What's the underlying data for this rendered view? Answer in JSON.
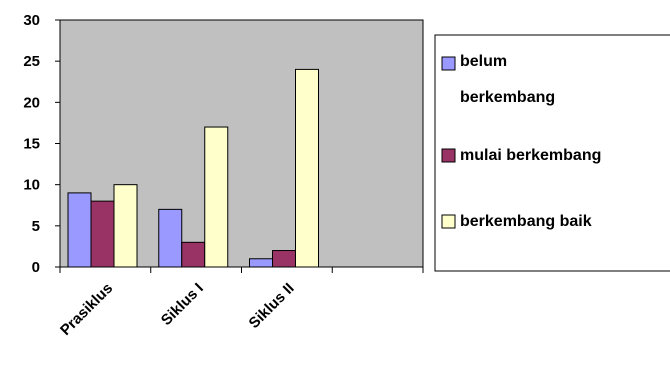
{
  "chart_data": {
    "type": "bar",
    "categories": [
      "Prasiklus",
      "Siklus I",
      "Siklus II",
      ""
    ],
    "series": [
      {
        "name": "belum berkembang",
        "values": [
          9,
          7,
          1,
          null
        ],
        "color": "#9999ff"
      },
      {
        "name": "mulai berkembang",
        "values": [
          8,
          3,
          2,
          null
        ],
        "color": "#993366"
      },
      {
        "name": "berkembang baik",
        "values": [
          10,
          17,
          24,
          null
        ],
        "color": "#ffffcc"
      }
    ],
    "ylim": [
      0,
      30
    ],
    "yticks": [
      0,
      5,
      10,
      15,
      20,
      25,
      30
    ],
    "plot_background": "#c0c0c0",
    "grid": false,
    "legend_position": "right",
    "legend_lines": [
      [
        "belum",
        "berkembang"
      ],
      [
        "mulai berkembang"
      ],
      [
        "berkembang baik"
      ]
    ]
  }
}
